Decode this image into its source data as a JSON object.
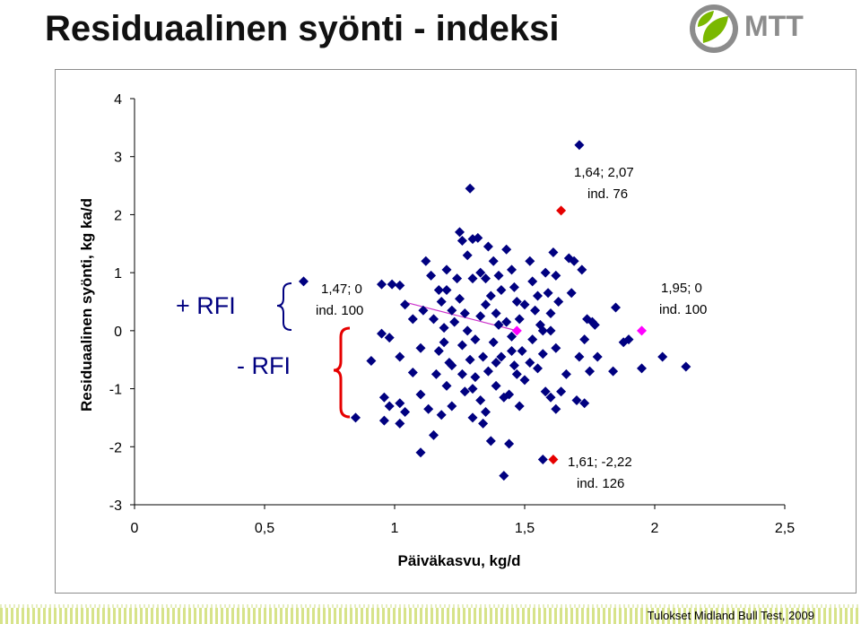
{
  "header": {
    "title": "Residuaalinen syönti - indeksi"
  },
  "logo": {
    "text": "MTT",
    "colors": {
      "green": "#7ab800",
      "gray": "#8c8c8c"
    }
  },
  "footer": {
    "source": "Tulokset Midland Bull Test, 2009"
  },
  "labels": {
    "plus_rfi": "+ RFI",
    "minus_rfi": "- RFI",
    "a1_line1": "1,47; 0",
    "a1_line2": "ind. 100",
    "a2_line1": "1,64; 2,07",
    "a2_line2": "ind. 76",
    "a3_line1": "1,95; 0",
    "a3_line2": "ind. 100",
    "a4_line1": "1,61; -2,22",
    "a4_line2": "ind. 126"
  },
  "chart_data": {
    "type": "scatter",
    "title": "",
    "xlabel": "Päiväkasvu, kg/d",
    "ylabel": "Residuaalinen syönti, kg ka/d",
    "xlim": [
      0,
      2.5
    ],
    "ylim": [
      -3,
      4
    ],
    "xticks": [
      "0",
      "0,5",
      "1",
      "1,5",
      "2",
      "2,5"
    ],
    "xtick_values": [
      0,
      0.5,
      1,
      1.5,
      2,
      2.5
    ],
    "yticks": [
      "4",
      "3",
      "2",
      "1",
      "0",
      "-1",
      "-2",
      "-3"
    ],
    "ytick_values": [
      4,
      3,
      2,
      1,
      0,
      -1,
      -2,
      -3
    ],
    "grid": false,
    "colors": {
      "points": "#000080",
      "highlight_red": "#e60000",
      "highlight_magenta": "#ff00ff",
      "line": "#cc33cc",
      "brace_plus": "#000080",
      "brace_minus": "#e60000"
    },
    "series": [
      {
        "points": [
          [
            0.65,
            0.85
          ],
          [
            0.95,
            0.8
          ],
          [
            0.99,
            0.8
          ],
          [
            1.02,
            0.78
          ],
          [
            1.04,
            0.45
          ],
          [
            0.95,
            -0.05
          ],
          [
            0.98,
            -0.12
          ],
          [
            0.91,
            -0.52
          ],
          [
            1.02,
            -0.45
          ],
          [
            1.07,
            -0.72
          ],
          [
            0.96,
            -1.15
          ],
          [
            0.98,
            -1.3
          ],
          [
            1.02,
            -1.25
          ],
          [
            1.04,
            -1.4
          ],
          [
            0.96,
            -1.55
          ],
          [
            1.02,
            -1.6
          ],
          [
            0.85,
            -1.5
          ],
          [
            1.1,
            -1.1
          ],
          [
            1.1,
            -0.3
          ],
          [
            1.07,
            0.2
          ],
          [
            1.12,
            1.2
          ],
          [
            1.15,
            0.2
          ],
          [
            1.18,
            0.5
          ],
          [
            1.2,
            0.7
          ],
          [
            1.22,
            0.35
          ],
          [
            1.19,
            0.05
          ],
          [
            1.17,
            -0.35
          ],
          [
            1.21,
            -0.55
          ],
          [
            1.16,
            -0.75
          ],
          [
            1.2,
            -0.95
          ],
          [
            1.13,
            -1.35
          ],
          [
            1.18,
            -1.45
          ],
          [
            1.15,
            -1.8
          ],
          [
            1.1,
            -2.1
          ],
          [
            1.22,
            -1.3
          ],
          [
            1.25,
            1.7
          ],
          [
            1.26,
            1.55
          ],
          [
            1.28,
            1.3
          ],
          [
            1.3,
            1.58
          ],
          [
            1.32,
            1.6
          ],
          [
            1.33,
            1.0
          ],
          [
            1.3,
            0.9
          ],
          [
            1.29,
            2.45
          ],
          [
            1.24,
            0.9
          ],
          [
            1.25,
            0.55
          ],
          [
            1.27,
            0.3
          ],
          [
            1.28,
            0.0
          ],
          [
            1.26,
            -0.25
          ],
          [
            1.29,
            -0.5
          ],
          [
            1.31,
            -0.8
          ],
          [
            1.27,
            -1.05
          ],
          [
            1.33,
            -1.2
          ],
          [
            1.3,
            -1.5
          ],
          [
            1.34,
            -1.6
          ],
          [
            1.35,
            -1.4
          ],
          [
            1.36,
            1.45
          ],
          [
            1.38,
            1.2
          ],
          [
            1.4,
            0.95
          ],
          [
            1.37,
            0.6
          ],
          [
            1.39,
            0.3
          ],
          [
            1.4,
            0.1
          ],
          [
            1.38,
            -0.2
          ],
          [
            1.41,
            -0.45
          ],
          [
            1.36,
            -0.7
          ],
          [
            1.39,
            -0.95
          ],
          [
            1.42,
            -1.15
          ],
          [
            1.37,
            -1.9
          ],
          [
            1.44,
            -1.95
          ],
          [
            1.43,
            1.4
          ],
          [
            1.45,
            1.05
          ],
          [
            1.46,
            0.75
          ],
          [
            1.47,
            0.5
          ],
          [
            1.48,
            0.2
          ],
          [
            1.45,
            -0.1
          ],
          [
            1.49,
            -0.35
          ],
          [
            1.46,
            -0.6
          ],
          [
            1.5,
            -0.85
          ],
          [
            1.44,
            -1.1
          ],
          [
            1.48,
            -1.3
          ],
          [
            1.42,
            -2.5
          ],
          [
            1.52,
            1.2
          ],
          [
            1.53,
            0.85
          ],
          [
            1.55,
            0.6
          ],
          [
            1.54,
            0.35
          ],
          [
            1.56,
            0.1
          ],
          [
            1.53,
            -0.15
          ],
          [
            1.57,
            -0.4
          ],
          [
            1.55,
            -0.65
          ],
          [
            1.58,
            1.0
          ],
          [
            1.59,
            0.65
          ],
          [
            1.6,
            0.3
          ],
          [
            1.61,
            1.35
          ],
          [
            1.62,
            0.95
          ],
          [
            1.63,
            0.5
          ],
          [
            1.6,
            0.0
          ],
          [
            1.62,
            -0.3
          ],
          [
            1.58,
            -1.05
          ],
          [
            1.6,
            -1.15
          ],
          [
            1.62,
            -1.35
          ],
          [
            1.64,
            -1.05
          ],
          [
            1.66,
            -0.75
          ],
          [
            1.57,
            -2.22
          ],
          [
            1.67,
            1.25
          ],
          [
            1.69,
            1.2
          ],
          [
            1.68,
            0.65
          ],
          [
            1.71,
            3.2
          ],
          [
            1.72,
            1.05
          ],
          [
            1.74,
            0.2
          ],
          [
            1.76,
            0.15
          ],
          [
            1.73,
            -0.15
          ],
          [
            1.71,
            -0.45
          ],
          [
            1.75,
            -0.7
          ],
          [
            1.7,
            -1.2
          ],
          [
            1.73,
            -1.25
          ],
          [
            1.78,
            -0.45
          ],
          [
            1.85,
            0.4
          ],
          [
            1.88,
            -0.2
          ],
          [
            1.9,
            -0.15
          ],
          [
            1.95,
            -0.65
          ],
          [
            2.03,
            -0.45
          ],
          [
            2.12,
            -0.62
          ],
          [
            1.84,
            -0.7
          ],
          [
            1.77,
            0.1
          ],
          [
            1.35,
            0.9
          ],
          [
            1.2,
            1.05
          ],
          [
            1.14,
            0.95
          ],
          [
            1.11,
            0.35
          ],
          [
            1.33,
            0.25
          ],
          [
            1.43,
            0.15
          ],
          [
            1.52,
            -0.55
          ],
          [
            1.47,
            -0.75
          ],
          [
            1.34,
            -0.45
          ],
          [
            1.26,
            -0.75
          ],
          [
            1.23,
            0.15
          ],
          [
            1.31,
            -0.15
          ],
          [
            1.35,
            0.45
          ],
          [
            1.41,
            0.7
          ],
          [
            1.5,
            0.45
          ],
          [
            1.57,
            0.0
          ],
          [
            1.19,
            -0.2
          ],
          [
            1.17,
            0.7
          ],
          [
            1.39,
            -0.55
          ],
          [
            1.45,
            -0.35
          ],
          [
            1.3,
            -1.0
          ],
          [
            1.22,
            -0.6
          ]
        ]
      },
      {
        "name": "",
        "points": [
          [
            1.47,
            0
          ],
          [
            1.95,
            0
          ]
        ]
      },
      {
        "name": "",
        "points": [
          [
            1.64,
            2.07
          ],
          [
            1.61,
            -2.22
          ]
        ]
      }
    ]
  }
}
